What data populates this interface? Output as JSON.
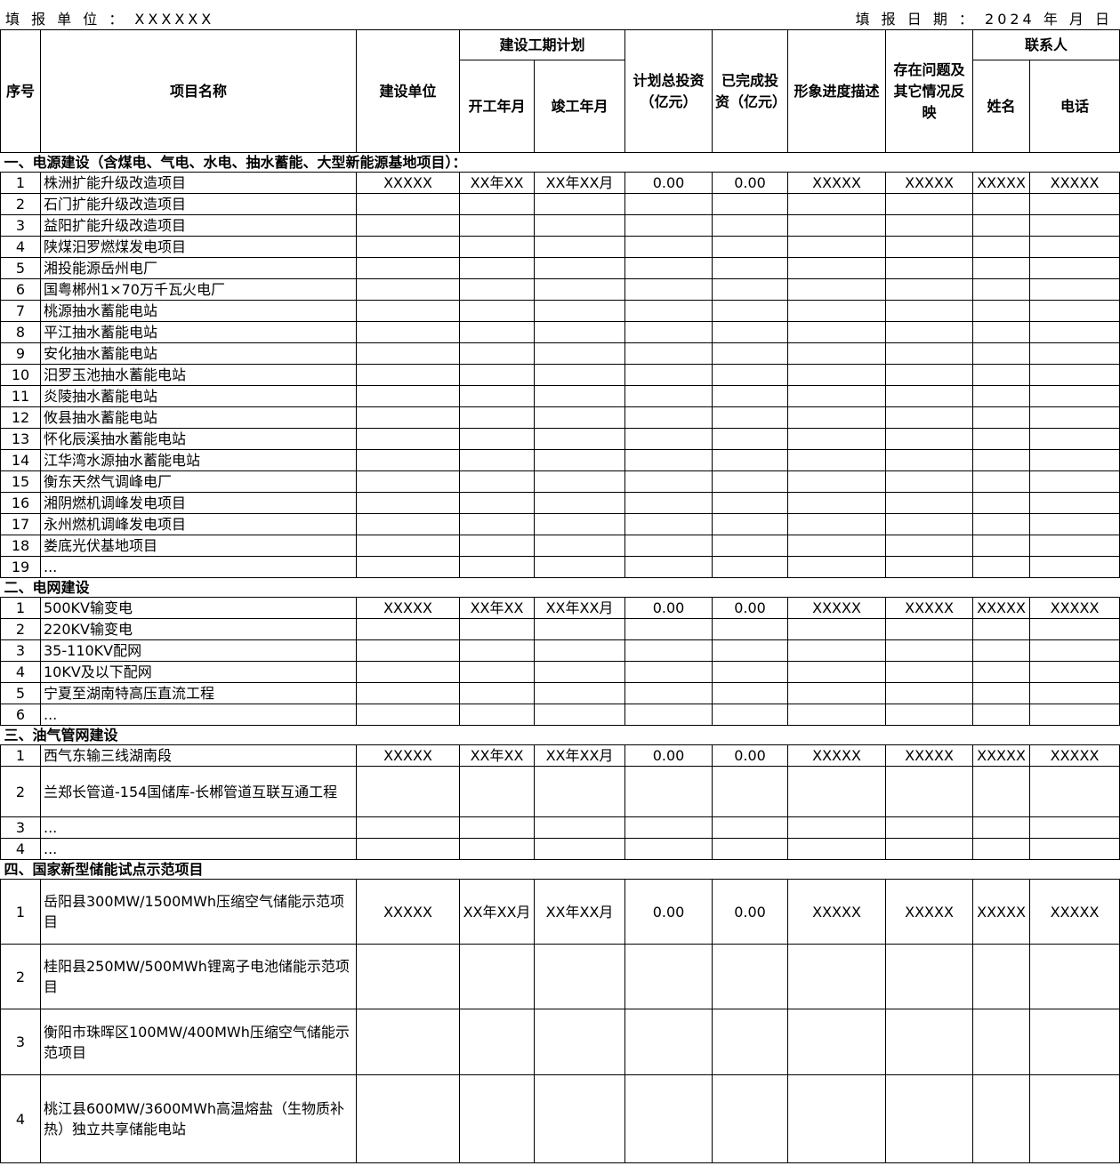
{
  "header": {
    "unit_label": "填 报 单 位 ： XXXXXX",
    "date_label": "填 报 日 期 ：  2024 年   月   日"
  },
  "columns": {
    "seq": "序号",
    "name": "项目名称",
    "builder": "建设单位",
    "schedule": "建设工期计划",
    "start": "开工年月",
    "end": "竣工年月",
    "planned": "计划总投资（亿元）",
    "completed": "已完成投资（亿元）",
    "progress": "形象进度描述",
    "issues": "存在问题及其它情况反映",
    "contact": "联系人",
    "contact_name": "姓名",
    "contact_phone": "电话"
  },
  "sections": [
    {
      "title": "一、电源建设（含煤电、气电、水电、抽水蓄能、大型新能源基地项目）：",
      "rows": [
        {
          "seq": "1",
          "name": "株洲扩能升级改造项目",
          "builder": "XXXXX",
          "start": "XX年XX",
          "end": "XX年XX月",
          "planned": "0.00",
          "completed": "0.00",
          "progress": "XXXXX",
          "issues": "XXXXX",
          "contact_name": "XXXXX",
          "contact_phone": "XXXXX"
        },
        {
          "seq": "2",
          "name": "石门扩能升级改造项目"
        },
        {
          "seq": "3",
          "name": "益阳扩能升级改造项目"
        },
        {
          "seq": "4",
          "name": "陕煤汨罗燃煤发电项目"
        },
        {
          "seq": "5",
          "name": "湘投能源岳州电厂"
        },
        {
          "seq": "6",
          "name": "国粤郴州1×70万千瓦火电厂"
        },
        {
          "seq": "7",
          "name": "桃源抽水蓄能电站"
        },
        {
          "seq": "8",
          "name": "平江抽水蓄能电站"
        },
        {
          "seq": "9",
          "name": "安化抽水蓄能电站"
        },
        {
          "seq": "10",
          "name": "汨罗玉池抽水蓄能电站"
        },
        {
          "seq": "11",
          "name": "炎陵抽水蓄能电站"
        },
        {
          "seq": "12",
          "name": "攸县抽水蓄能电站"
        },
        {
          "seq": "13",
          "name": "怀化辰溪抽水蓄能电站"
        },
        {
          "seq": "14",
          "name": "江华湾水源抽水蓄能电站"
        },
        {
          "seq": "15",
          "name": "衡东天然气调峰电厂"
        },
        {
          "seq": "16",
          "name": "湘阴燃机调峰发电项目"
        },
        {
          "seq": "17",
          "name": "永州燃机调峰发电项目"
        },
        {
          "seq": "18",
          "name": "娄底光伏基地项目"
        },
        {
          "seq": "19",
          "name": "..."
        }
      ]
    },
    {
      "title": "二、电网建设",
      "rows": [
        {
          "seq": "1",
          "name": "500KV输变电",
          "builder": "XXXXX",
          "start": "XX年XX",
          "end": "XX年XX月",
          "planned": "0.00",
          "completed": "0.00",
          "progress": "XXXXX",
          "issues": "XXXXX",
          "contact_name": "XXXXX",
          "contact_phone": "XXXXX"
        },
        {
          "seq": "2",
          "name": "220KV输变电"
        },
        {
          "seq": "3",
          "name": "35-110KV配网"
        },
        {
          "seq": "4",
          "name": "10KV及以下配网"
        },
        {
          "seq": "5",
          "name": "宁夏至湖南特高压直流工程"
        },
        {
          "seq": "6",
          "name": "..."
        }
      ]
    },
    {
      "title": "三、油气管网建设",
      "rows": [
        {
          "seq": "1",
          "name": "西气东输三线湖南段",
          "builder": "XXXXX",
          "start": "XX年XX",
          "end": "XX年XX月",
          "planned": "0.00",
          "completed": "0.00",
          "progress": "XXXXX",
          "issues": "XXXXX",
          "contact_name": "XXXXX",
          "contact_phone": "XXXXX"
        },
        {
          "seq": "2",
          "name": "兰郑长管道-154国储库-长郴管道互联互通工程"
        },
        {
          "seq": "3",
          "name": "..."
        },
        {
          "seq": "4",
          "name": "..."
        }
      ]
    },
    {
      "title": "四、国家新型储能试点示范项目",
      "rows": [
        {
          "seq": "1",
          "name": "岳阳县300MW/1500MWh压缩空气储能示范项目",
          "builder": "XXXXX",
          "start": "XX年XX月",
          "end": "XX年XX月",
          "planned": "0.00",
          "completed": "0.00",
          "progress": "XXXXX",
          "issues": "XXXXX",
          "contact_name": "XXXXX",
          "contact_phone": "XXXXX"
        },
        {
          "seq": "2",
          "name": "桂阳县250MW/500MWh锂离子电池储能示范项目"
        },
        {
          "seq": "3",
          "name": "衡阳市珠晖区100MW/400MWh压缩空气储能示范项目"
        },
        {
          "seq": "4",
          "name": "桃江县600MW/3600MWh高温熔盐（生物质补热）独立共享储能电站"
        }
      ]
    }
  ]
}
